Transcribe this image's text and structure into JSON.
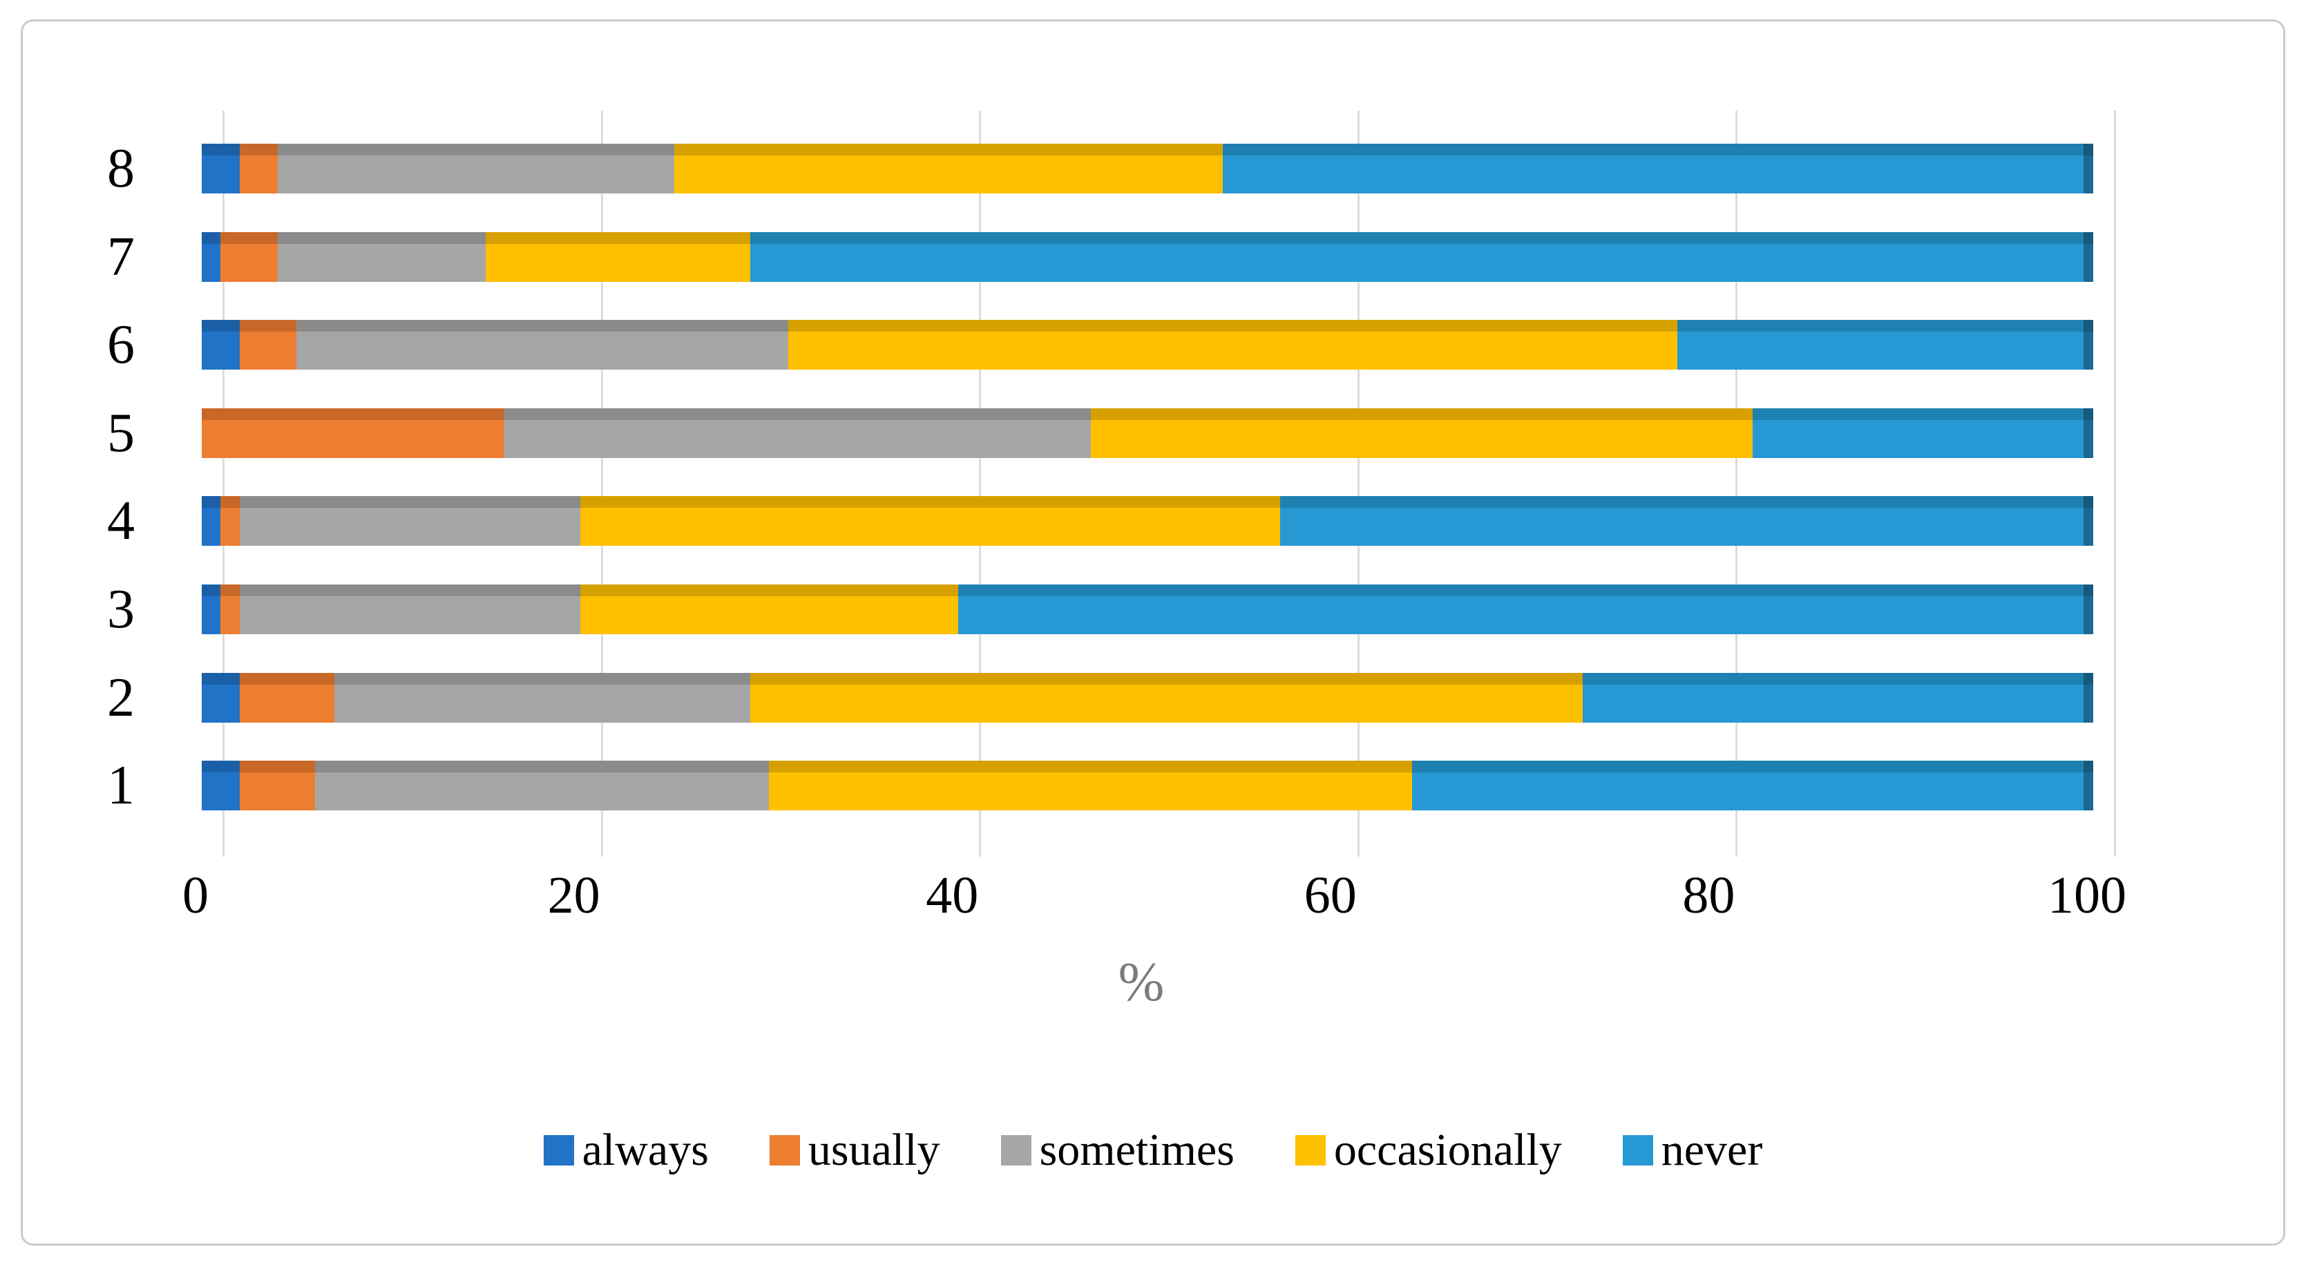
{
  "figure": {
    "background": "#ffffff",
    "border_color": "#c9cbcc"
  },
  "chart_data": {
    "type": "bar",
    "orientation": "horizontal",
    "stacked": true,
    "style": "3d-beveled",
    "title": "",
    "xlabel": "%",
    "ylabel": "",
    "xlim": [
      0,
      100
    ],
    "x_ticks": [
      "0",
      "20",
      "40",
      "60",
      "80",
      "100"
    ],
    "grid": "vertical",
    "gridline_color": "#dcdcdc",
    "axis_title_color": "#7b7b7b",
    "legend_position": "bottom",
    "categories": [
      "1",
      "2",
      "3",
      "4",
      "5",
      "6",
      "7",
      "8"
    ],
    "series": [
      {
        "name": "always",
        "color": "#2173c8",
        "values": [
          2,
          2,
          1,
          1,
          0,
          2,
          1,
          2
        ]
      },
      {
        "name": "usually",
        "color": "#ed7d31",
        "values": [
          4,
          5,
          1,
          1,
          16,
          3,
          3,
          2
        ]
      },
      {
        "name": "sometimes",
        "color": "#a6a6a6",
        "values": [
          24,
          22,
          18,
          18,
          31,
          26,
          11,
          21
        ]
      },
      {
        "name": "occasionally",
        "color": "#ffc000",
        "values": [
          34,
          44,
          20,
          37,
          35,
          47,
          14,
          29
        ]
      },
      {
        "name": "never",
        "color": "#2699d4",
        "values": [
          36,
          27,
          60,
          43,
          18,
          22,
          71,
          46
        ]
      }
    ]
  }
}
